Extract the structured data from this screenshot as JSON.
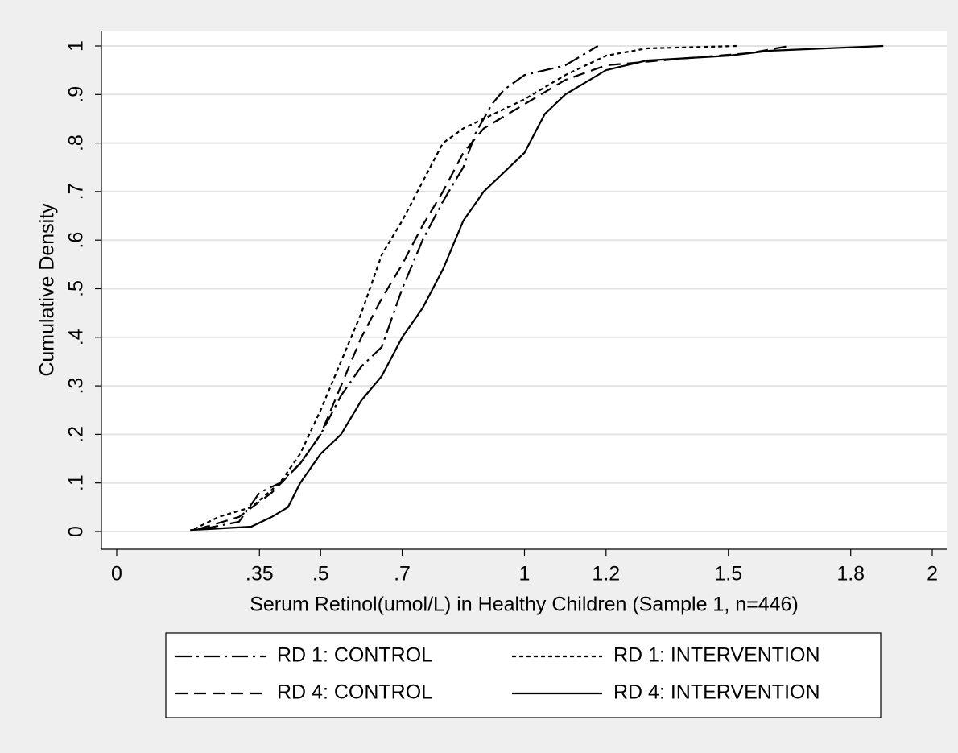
{
  "chart_data": {
    "type": "line",
    "x_label": "Serum Retinol(umol/L) in Healthy Children (Sample 1, n=446)",
    "y_label": "Cumulative Density",
    "xlim": [
      -0.0375,
      2.0355
    ],
    "ylim": [
      -0.0365,
      1.0315
    ],
    "xticks": [
      0,
      {
        "value": 0.35,
        "label": ".35"
      },
      {
        "value": 0.5,
        "label": ".5"
      },
      {
        "value": 0.7,
        "label": ".7"
      },
      1,
      1.2,
      1.5,
      1.8,
      2
    ],
    "yticks": [
      0,
      {
        "value": 0.1,
        "label": ".1"
      },
      {
        "value": 0.2,
        "label": ".2"
      },
      {
        "value": 0.3,
        "label": ".3"
      },
      {
        "value": 0.4,
        "label": ".4"
      },
      {
        "value": 0.5,
        "label": ".5"
      },
      {
        "value": 0.6,
        "label": ".6"
      },
      {
        "value": 0.7,
        "label": ".7"
      },
      {
        "value": 0.8,
        "label": ".8"
      },
      {
        "value": 0.9,
        "label": ".9"
      },
      1
    ],
    "grid": true,
    "legend_position": "bottom",
    "series": [
      {
        "name": "RD 1: CONTROL",
        "color": "#000000",
        "dash": "dashdot",
        "x": [
          0.21,
          0.3,
          0.35,
          0.4,
          0.45,
          0.5,
          0.55,
          0.6,
          0.65,
          0.7,
          0.75,
          0.8,
          0.85,
          0.88,
          0.92,
          0.95,
          1.0,
          1.1,
          1.18
        ],
        "values": [
          0.005,
          0.02,
          0.08,
          0.1,
          0.14,
          0.2,
          0.28,
          0.34,
          0.38,
          0.5,
          0.6,
          0.68,
          0.75,
          0.82,
          0.88,
          0.91,
          0.94,
          0.96,
          1.0
        ]
      },
      {
        "name": "RD 1: INTERVENTION",
        "color": "#000000",
        "dash": "shortdash",
        "x": [
          0.19,
          0.25,
          0.33,
          0.4,
          0.45,
          0.5,
          0.55,
          0.6,
          0.65,
          0.7,
          0.75,
          0.8,
          0.85,
          0.9,
          1.0,
          1.1,
          1.2,
          1.3,
          1.52
        ],
        "values": [
          0.005,
          0.03,
          0.05,
          0.1,
          0.16,
          0.25,
          0.35,
          0.45,
          0.57,
          0.64,
          0.72,
          0.8,
          0.83,
          0.85,
          0.89,
          0.94,
          0.98,
          0.995,
          1.0
        ]
      },
      {
        "name": "RD 4: CONTROL",
        "color": "#000000",
        "dash": "longdash",
        "x": [
          0.2,
          0.3,
          0.38,
          0.45,
          0.5,
          0.55,
          0.6,
          0.65,
          0.7,
          0.75,
          0.8,
          0.85,
          0.9,
          1.0,
          1.1,
          1.2,
          1.4,
          1.55,
          1.65
        ],
        "values": [
          0.005,
          0.03,
          0.08,
          0.14,
          0.2,
          0.3,
          0.4,
          0.48,
          0.55,
          0.63,
          0.7,
          0.78,
          0.83,
          0.88,
          0.93,
          0.96,
          0.975,
          0.985,
          1.0
        ]
      },
      {
        "name": "RD 4: INTERVENTION",
        "color": "#000000",
        "dash": "solid",
        "x": [
          0.18,
          0.33,
          0.38,
          0.42,
          0.45,
          0.5,
          0.55,
          0.6,
          0.65,
          0.7,
          0.75,
          0.8,
          0.85,
          0.9,
          0.95,
          1.0,
          1.05,
          1.1,
          1.2,
          1.3,
          1.5,
          1.6,
          1.88
        ],
        "values": [
          0.003,
          0.01,
          0.03,
          0.05,
          0.1,
          0.16,
          0.2,
          0.27,
          0.32,
          0.4,
          0.46,
          0.54,
          0.64,
          0.7,
          0.74,
          0.78,
          0.86,
          0.9,
          0.95,
          0.97,
          0.98,
          0.99,
          1.0
        ]
      }
    ]
  }
}
